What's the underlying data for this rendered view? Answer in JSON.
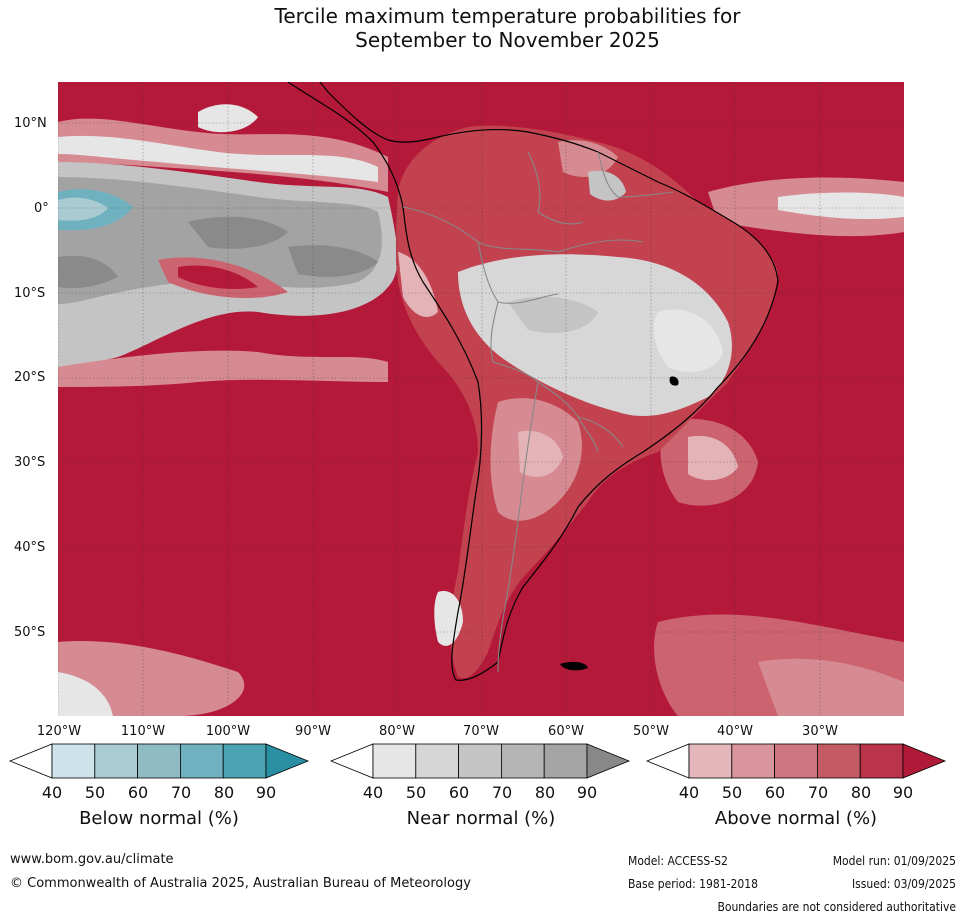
{
  "title": {
    "line1": "Tercile maximum temperature probabilities for",
    "line2": "September to November 2025"
  },
  "map": {
    "lat_labels": [
      "10°N",
      "0°",
      "10°S",
      "20°S",
      "30°S",
      "40°S",
      "50°S"
    ],
    "lon_labels": [
      "120°W",
      "110°W",
      "100°W",
      "90°W",
      "80°W",
      "70°W",
      "60°W",
      "50°W",
      "40°W",
      "30°W"
    ],
    "colors": {
      "ocean_above": "#b5193a",
      "above_80": "#c2424f",
      "above_70": "#cc6470",
      "above_60": "#d68a92",
      "above_50": "#e3b3b8",
      "near_40": "#e6e6e6",
      "near_50": "#d7d7d7",
      "near_60": "#c4c4c4",
      "near_70": "#b3b3b3",
      "near_80": "#a3a3a3",
      "near_90": "#8a8a8a",
      "below_50": "#a9cbd1",
      "below_70": "#6fb1bf"
    }
  },
  "colorbars": [
    {
      "label": "Below normal (%)",
      "ticks": [
        "40",
        "50",
        "60",
        "70",
        "80",
        "90"
      ],
      "colors": [
        "#ffffff",
        "#cde3e9",
        "#a9cbd1",
        "#8fbcc4",
        "#6fb1bf",
        "#4ba3b2",
        "#2a8fa3"
      ]
    },
    {
      "label": "Near normal (%)",
      "ticks": [
        "40",
        "50",
        "60",
        "70",
        "80",
        "90"
      ],
      "colors": [
        "#ffffff",
        "#e6e6e6",
        "#d6d6d6",
        "#c5c5c5",
        "#b4b4b4",
        "#a4a4a4",
        "#888888"
      ]
    },
    {
      "label": "Above normal (%)",
      "ticks": [
        "40",
        "50",
        "60",
        "70",
        "80",
        "90"
      ],
      "colors": [
        "#ffffff",
        "#e3b7bc",
        "#d8959c",
        "#cd767f",
        "#c45a64",
        "#b9344a",
        "#b01a38"
      ]
    }
  ],
  "footer": {
    "website": "www.bom.gov.au/climate",
    "copyright": "© Commonwealth of Australia 2025, Australian Bureau of Meteorology",
    "model": "Model: ACCESS-S2",
    "base_period": "Base period: 1981-2018",
    "model_run": "Model run: 01/09/2025",
    "issued": "Issued: 03/09/2025",
    "boundaries": "Boundaries are not considered authoritative"
  }
}
